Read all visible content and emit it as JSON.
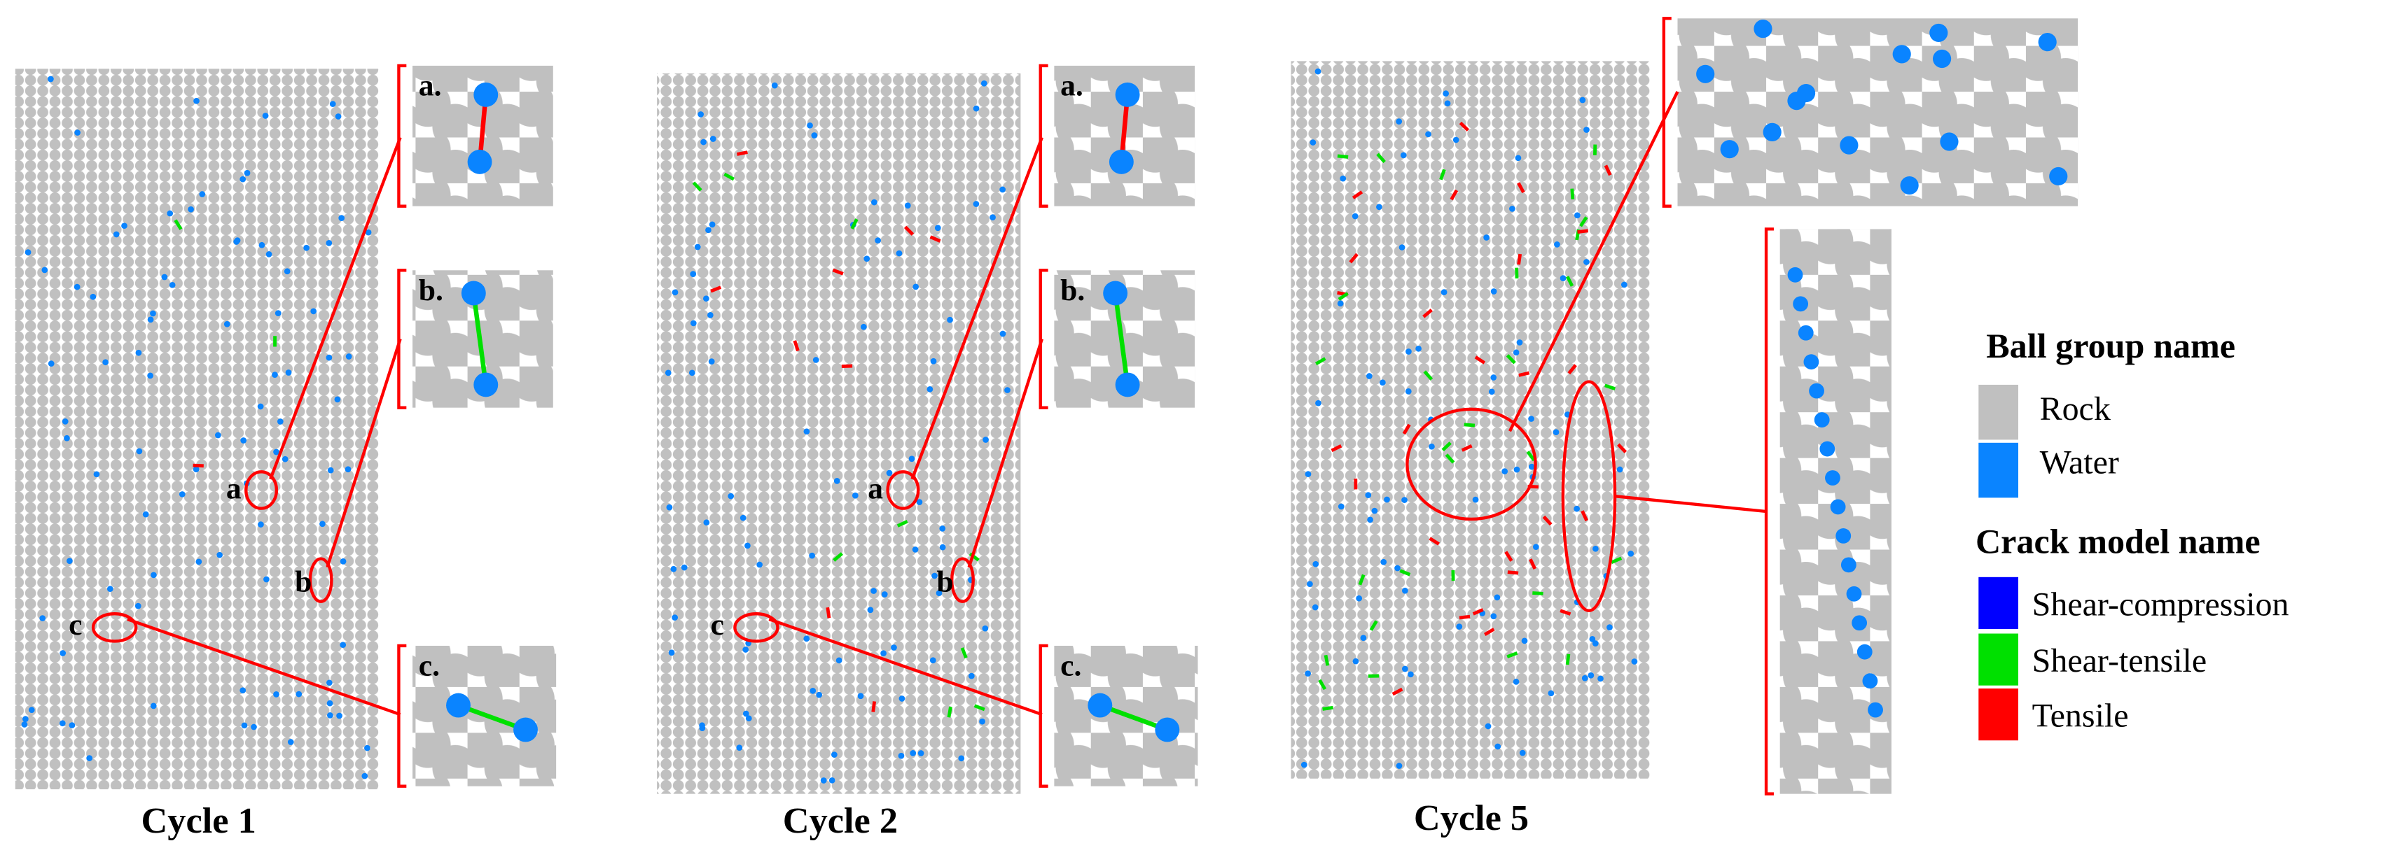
{
  "panels": [
    {
      "caption": "Cycle 1",
      "insets": [
        "a.",
        "b.",
        "c."
      ],
      "markers": [
        "a",
        "b",
        "c"
      ]
    },
    {
      "caption": "Cycle 2",
      "insets": [
        "a.",
        "b.",
        "c."
      ],
      "markers": [
        "a",
        "b",
        "c"
      ]
    },
    {
      "caption": "Cycle 5"
    }
  ],
  "legend": {
    "ball_title": "Ball group name",
    "balls": [
      "Rock",
      "Water"
    ],
    "crack_title": "Crack model name",
    "cracks": [
      "Shear-compression",
      "Shear-tensile",
      "Tensile"
    ]
  }
}
